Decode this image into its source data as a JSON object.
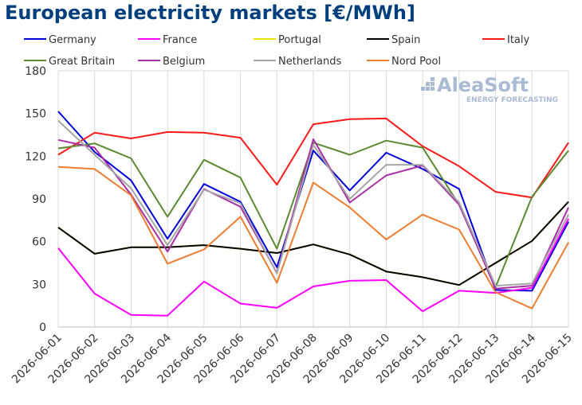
{
  "page": {
    "title": "European electricity markets [€/MWh]"
  },
  "logo": {
    "name": "AleaSoft",
    "tagline": "ENERGY FORECASTING",
    "color": "#a9bad3"
  },
  "chart_data": {
    "type": "line",
    "title": "European electricity markets [€/MWh]",
    "xlabel": "",
    "ylabel": "",
    "ylim": [
      0,
      180
    ],
    "yticks": [
      0,
      30,
      60,
      90,
      120,
      150,
      180
    ],
    "grid": "vertical lines at each date, horizontal border lines",
    "legend_placement": "top, two rows above plot",
    "categories": [
      "2026-06-01",
      "2026-06-02",
      "2026-06-03",
      "2026-06-04",
      "2026-06-05",
      "2026-06-06",
      "2026-06-07",
      "2026-06-08",
      "2026-06-09",
      "2026-06-10",
      "2026-06-11",
      "2026-06-12",
      "2026-06-13",
      "2026-06-14",
      "2026-06-15"
    ],
    "series": [
      {
        "name": "Germany",
        "color": "#0000dd",
        "values": [
          151.5,
          123,
          103,
          62,
          100.5,
          88,
          42,
          124,
          96,
          122.5,
          111,
          97,
          26,
          25.5,
          74
        ]
      },
      {
        "name": "France",
        "color": "#ff00ff",
        "values": [
          55.5,
          23.5,
          8.5,
          8,
          32,
          16.5,
          13.5,
          28.5,
          32.5,
          33,
          11,
          25.5,
          24,
          27.5,
          76
        ]
      },
      {
        "name": "Portugal",
        "color": "#e6e600",
        "values": [
          70,
          51.5,
          56,
          56,
          57.5,
          55,
          52,
          58,
          51,
          39,
          35,
          29.5,
          45,
          60.5,
          88
        ]
      },
      {
        "name": "Spain",
        "color": "#000000",
        "values": [
          70,
          51.5,
          56,
          56,
          57.5,
          55,
          52,
          58,
          51,
          39,
          35,
          29.5,
          45,
          60.5,
          88
        ]
      },
      {
        "name": "Italy",
        "color": "#ff1a1a",
        "values": [
          121,
          136.5,
          132.5,
          137,
          136.5,
          133,
          100,
          142.5,
          146,
          146.5,
          127,
          113,
          95,
          91,
          129.5
        ]
      },
      {
        "name": "Great Britain",
        "color": "#5b8a32",
        "values": [
          125.5,
          129,
          118.5,
          77.5,
          117.5,
          105,
          55,
          129.5,
          121,
          131,
          126,
          86,
          28,
          91.5,
          124
        ]
      },
      {
        "name": "Belgium",
        "color": "#aa2ea6",
        "values": [
          131.5,
          126,
          93,
          53,
          97,
          84.5,
          38,
          132,
          87.5,
          106.5,
          113.5,
          86,
          27,
          29,
          84
        ]
      },
      {
        "name": "Netherlands",
        "color": "#a6a6a6",
        "values": [
          145,
          121,
          97.5,
          57.5,
          96.5,
          87,
          37.5,
          128,
          90,
          114,
          114,
          87.5,
          29,
          30.5,
          79
        ]
      },
      {
        "name": "Nord Pool",
        "color": "#ed7d31",
        "values": [
          112.5,
          111,
          92.5,
          44.5,
          54.5,
          77.5,
          31,
          101.5,
          84,
          61.5,
          79,
          68.5,
          24.5,
          13,
          59.5
        ]
      }
    ]
  }
}
